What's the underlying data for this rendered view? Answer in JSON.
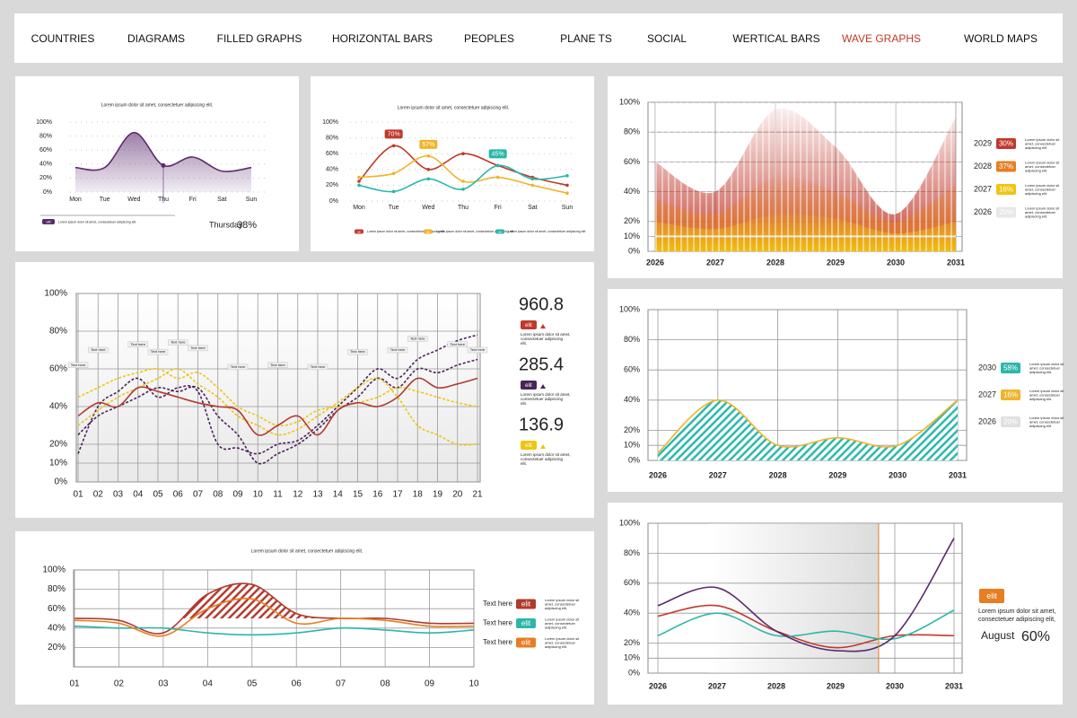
{
  "nav": {
    "items": [
      "COUNTRIES",
      "DIAGRAMS",
      "FILLED GRAPHS",
      "HORIZONTAL BARS",
      "PEOPLES",
      "PLANE TS",
      "SOCIAL",
      "WERTICAL BARS",
      "WAVE GRAPHS",
      "WORLD MAPS"
    ],
    "active_index": 8
  },
  "chart_data": [
    {
      "type": "area",
      "title": "Lorem ipsum dolor sit amet, consectetuer adipiscing elit.",
      "grid": "dotted",
      "categories": [
        "Mon",
        "Tue",
        "Wed",
        "Thu",
        "Fri",
        "Sat",
        "Sun"
      ],
      "series": [
        {
          "name": "elit",
          "color": "#5b2a6e",
          "fill": "gradient",
          "values": [
            35,
            35,
            85,
            38,
            50,
            30,
            35
          ],
          "description": "Lorem ipsum dolor sit amet, consectetuer adipiscing elit."
        }
      ],
      "ylim": [
        0,
        100
      ],
      "yticks": [
        {
          "value": 0,
          "label": "0%"
        },
        {
          "value": 20,
          "label": "20%"
        },
        {
          "value": 40,
          "label": "40%"
        },
        {
          "value": 60,
          "label": "60%"
        },
        {
          "value": 80,
          "label": "80%"
        },
        {
          "value": 100,
          "label": "100%"
        }
      ],
      "highlight": {
        "index": 3,
        "label": "Thursday",
        "value": 38,
        "value_label": "38%"
      }
    },
    {
      "type": "line",
      "title": "Lorem ipsum dolor sit amet, consectetuer adipiscing elit.",
      "grid": "dotted",
      "markers": true,
      "categories": [
        "Mon",
        "Tue",
        "Wed",
        "Thu",
        "Fri",
        "Sat",
        "Sun"
      ],
      "series": [
        {
          "name": "elit",
          "color": "#c0392b",
          "values": [
            25,
            70,
            40,
            60,
            45,
            30,
            20
          ],
          "value_labels": [
            null,
            "70%",
            null,
            null,
            null,
            null,
            null
          ],
          "description": "Lorem ipsum dolor sit amet, consectetuer adipiscing elit."
        },
        {
          "name": "elit",
          "color": "#f0b429",
          "values": [
            30,
            35,
            57,
            25,
            30,
            20,
            10
          ],
          "value_labels": [
            null,
            null,
            "57%",
            null,
            null,
            null,
            null
          ],
          "description": "Lorem ipsum dolor sit amet, consectetuer adipiscing elit."
        },
        {
          "name": "elit",
          "color": "#2ab7a9",
          "values": [
            20,
            12,
            28,
            15,
            45,
            28,
            32
          ],
          "value_labels": [
            null,
            null,
            null,
            null,
            "45%",
            null,
            null
          ],
          "description": "Lorem ipsum dolor sit amet, consectetuer adipiscing elit."
        }
      ],
      "ylim": [
        0,
        100
      ],
      "yticks": [
        {
          "value": 0,
          "label": "0%"
        },
        {
          "value": 20,
          "label": "20%"
        },
        {
          "value": 40,
          "label": "40%"
        },
        {
          "value": 60,
          "label": "60%"
        },
        {
          "value": 80,
          "label": "80%"
        },
        {
          "value": 100,
          "label": "100%"
        }
      ]
    },
    {
      "type": "area",
      "grid": "solid",
      "x": [
        2026,
        2027,
        2028,
        2029,
        2030,
        2031
      ],
      "xlim": [
        2026,
        2031
      ],
      "series": [
        {
          "name": "2029",
          "color": "#c0392b",
          "fill": "fade",
          "values": [
            60,
            40,
            95,
            70,
            25,
            90
          ],
          "share": 30,
          "share_label": "30%",
          "description": "Lorem ipsum dolor sit amet, consectetuer adipiscing elit."
        },
        {
          "name": "2028",
          "color": "#e67e22",
          "fill": "fade",
          "values": [
            35,
            25,
            50,
            40,
            20,
            45
          ],
          "share": 37,
          "share_label": "37%",
          "description": "Lorem ipsum dolor sit amet, consectetuer adipiscing elit."
        },
        {
          "name": "2027",
          "color": "#f1c40f",
          "fill": "fade",
          "values": [
            20,
            15,
            25,
            22,
            12,
            20
          ],
          "share": 16,
          "share_label": "16%",
          "description": "Lorem ipsum dolor sit amet, consectetuer adipiscing elit."
        },
        {
          "name": "2026",
          "color": "#e8e8e8",
          "values": [
            10,
            10,
            10,
            10,
            10,
            10
          ],
          "share": 20,
          "share_label": "20%",
          "description": "Lorem ipsum dolor sit amet, consectetuer adipiscing elit."
        }
      ],
      "ylim": [
        0,
        100
      ],
      "yticks": [
        {
          "value": 0,
          "label": "0%"
        },
        {
          "value": 10,
          "label": "10%"
        },
        {
          "value": 20,
          "label": "20%"
        },
        {
          "value": 40,
          "label": "40%"
        },
        {
          "value": 60,
          "label": "60%"
        },
        {
          "value": 80,
          "label": "80%"
        },
        {
          "value": 100,
          "label": "100%"
        }
      ]
    },
    {
      "type": "line",
      "grid": "solid",
      "categories": [
        "01",
        "02",
        "03",
        "04",
        "05",
        "06",
        "07",
        "08",
        "09",
        "10",
        "11",
        "12",
        "13",
        "14",
        "15",
        "16",
        "17",
        "18",
        "19",
        "20",
        "21"
      ],
      "series": [
        {
          "color": "#4a235a",
          "dash": true,
          "values": [
            15,
            40,
            48,
            55,
            45,
            50,
            48,
            20,
            18,
            15,
            20,
            22,
            30,
            40,
            50,
            60,
            55,
            65,
            70,
            75,
            78
          ]
        },
        {
          "color": "#4a235a",
          "dash": true,
          "values": [
            25,
            35,
            40,
            45,
            50,
            48,
            50,
            35,
            25,
            10,
            15,
            20,
            28,
            38,
            45,
            55,
            50,
            60,
            58,
            62,
            65
          ]
        },
        {
          "color": "#f1c40f",
          "dash": true,
          "values": [
            45,
            50,
            55,
            58,
            60,
            55,
            58,
            50,
            40,
            35,
            30,
            32,
            38,
            40,
            42,
            45,
            50,
            48,
            45,
            42,
            40
          ]
        },
        {
          "color": "#f1c40f",
          "dash": true,
          "values": [
            30,
            38,
            45,
            50,
            55,
            60,
            52,
            45,
            35,
            30,
            25,
            28,
            35,
            42,
            50,
            55,
            45,
            30,
            25,
            20,
            20
          ]
        },
        {
          "color": "#b03a2e",
          "values": [
            35,
            42,
            40,
            50,
            48,
            45,
            42,
            40,
            38,
            25,
            30,
            35,
            25,
            38,
            42,
            40,
            45,
            55,
            50,
            52,
            55
          ]
        }
      ],
      "ylim": [
        0,
        100
      ],
      "yticks": [
        {
          "value": 0,
          "label": "0%"
        },
        {
          "value": 10,
          "label": "10%"
        },
        {
          "value": 20,
          "label": "20%"
        },
        {
          "value": 40,
          "label": "40%"
        },
        {
          "value": 60,
          "label": "60%"
        },
        {
          "value": 80,
          "label": "80%"
        },
        {
          "value": 100,
          "label": "100%"
        }
      ],
      "annotations": [
        {
          "text": "Text here",
          "x": 0,
          "y": 62
        },
        {
          "text": "Text here",
          "x": 1,
          "y": 70
        },
        {
          "text": "Text here",
          "x": 3,
          "y": 73
        },
        {
          "text": "Text here",
          "x": 4,
          "y": 69
        },
        {
          "text": "Text here",
          "x": 5,
          "y": 74
        },
        {
          "text": "Text here",
          "x": 6,
          "y": 71
        },
        {
          "text": "Text here",
          "x": 8,
          "y": 61
        },
        {
          "text": "Text here",
          "x": 10,
          "y": 62
        },
        {
          "text": "Text here",
          "x": 12,
          "y": 61
        },
        {
          "text": "Text here",
          "x": 14,
          "y": 69
        },
        {
          "text": "Text here",
          "x": 16,
          "y": 70
        },
        {
          "text": "Text here",
          "x": 17,
          "y": 76
        },
        {
          "text": "Text here",
          "x": 19,
          "y": 73
        },
        {
          "text": "Text here",
          "x": 20,
          "y": 70
        }
      ],
      "stats": [
        {
          "value": 960.8,
          "badge": "elit",
          "color": "#c0392b",
          "description": "Lorem ipsum dolor sit amet, consectetuer adipiscing elit."
        },
        {
          "value": 285.4,
          "badge": "elit",
          "color": "#4a235a",
          "description": "Lorem ipsum dolor sit amet, consectetuer adipiscing elit."
        },
        {
          "value": 136.9,
          "badge": "elit",
          "color": "#f1c40f",
          "description": "Lorem ipsum dolor sit amet, consectetuer adipiscing elit."
        }
      ]
    },
    {
      "type": "area",
      "grid": "solid",
      "x": [
        2026,
        2027,
        2028,
        2029,
        2030,
        2031
      ],
      "xlim": [
        2026,
        2031
      ],
      "series": [
        {
          "color": "#f0b429",
          "fill": "hatch",
          "fill_color": "#2ab7a9",
          "values": [
            5,
            40,
            10,
            15,
            10,
            40
          ]
        }
      ],
      "ylim": [
        0,
        100
      ],
      "yticks": [
        {
          "value": 0,
          "label": "0%"
        },
        {
          "value": 10,
          "label": "10%"
        },
        {
          "value": 20,
          "label": "20%"
        },
        {
          "value": 40,
          "label": "40%"
        },
        {
          "value": 60,
          "label": "60%"
        },
        {
          "value": 80,
          "label": "80%"
        },
        {
          "value": 100,
          "label": "100%"
        }
      ],
      "legend_items": [
        {
          "name": "2030",
          "color": "#2ab7a9",
          "share": 58,
          "share_label": "58%",
          "description": "Lorem ipsum dolor sit amet, consectetuer adipiscing elit."
        },
        {
          "name": "2027",
          "color": "#f0b429",
          "share": 16,
          "share_label": "16%",
          "description": "Lorem ipsum dolor sit amet, consectetuer adipiscing elit."
        },
        {
          "name": "2026",
          "color": "#e0e0e0",
          "share": 20,
          "share_label": "20%",
          "description": "Lorem ipsum dolor sit amet, consectetuer adipiscing elit."
        }
      ]
    },
    {
      "type": "line",
      "title": "Lorem ipsum dolor sit amet, consectetuer adipiscing elit.",
      "grid": "solid",
      "categories": [
        "01",
        "02",
        "03",
        "04",
        "05",
        "06",
        "07",
        "08",
        "09",
        "10"
      ],
      "series": [
        {
          "label": "Text here",
          "name": "elit",
          "color": "#b03a2e",
          "fill": "hatch",
          "fill_color": "#b03a2e",
          "fill_floor": 50,
          "values": [
            50,
            48,
            35,
            75,
            85,
            55,
            50,
            50,
            45,
            45
          ],
          "description": "Lorem ipsum dolor sit amet, consectetuer adipiscing elit."
        },
        {
          "label": "Text here",
          "name": "elit",
          "color": "#2ab7a9",
          "values": [
            42,
            40,
            40,
            35,
            33,
            35,
            40,
            38,
            35,
            38
          ],
          "description": "Lorem ipsum dolor sit amet, consectetuer adipiscing elit."
        },
        {
          "label": "Text here",
          "name": "elit",
          "color": "#e67e22",
          "values": [
            48,
            45,
            32,
            60,
            70,
            45,
            50,
            48,
            42,
            42
          ],
          "description": "Lorem ipsum dolor sit amet, consectetuer adipiscing elit."
        }
      ],
      "ylim": [
        0,
        100
      ],
      "yticks": [
        {
          "value": 20,
          "label": "20%"
        },
        {
          "value": 40,
          "label": "40%"
        },
        {
          "value": 60,
          "label": "60%"
        },
        {
          "value": 80,
          "label": "80%"
        },
        {
          "value": 100,
          "label": "100%"
        }
      ]
    },
    {
      "type": "line",
      "grid": "solid",
      "x": [
        2026,
        2027,
        2028,
        2029,
        2030,
        2031
      ],
      "xlim": [
        2026,
        2031
      ],
      "series": [
        {
          "color": "#c0392b",
          "values": [
            38,
            45,
            28,
            17,
            25,
            25
          ]
        },
        {
          "color": "#2ab7a9",
          "values": [
            25,
            40,
            25,
            28,
            23,
            42
          ]
        },
        {
          "color": "#5b2a6e",
          "values": [
            45,
            57,
            28,
            15,
            25,
            90
          ]
        }
      ],
      "ylim": [
        0,
        100
      ],
      "yticks": [
        {
          "value": 0,
          "label": "0%"
        },
        {
          "value": 10,
          "label": "10%"
        },
        {
          "value": 20,
          "label": "20%"
        },
        {
          "value": 40,
          "label": "40%"
        },
        {
          "value": 60,
          "label": "60%"
        },
        {
          "value": 80,
          "label": "80%"
        },
        {
          "value": 100,
          "label": "100%"
        }
      ],
      "highlight": {
        "badge": "elit",
        "color": "#e67e22",
        "description": "Lorem ipsum dolor sit amet, consectetuer adipiscing elit,",
        "label": "August",
        "value": 60,
        "value_label": "60%"
      }
    }
  ]
}
